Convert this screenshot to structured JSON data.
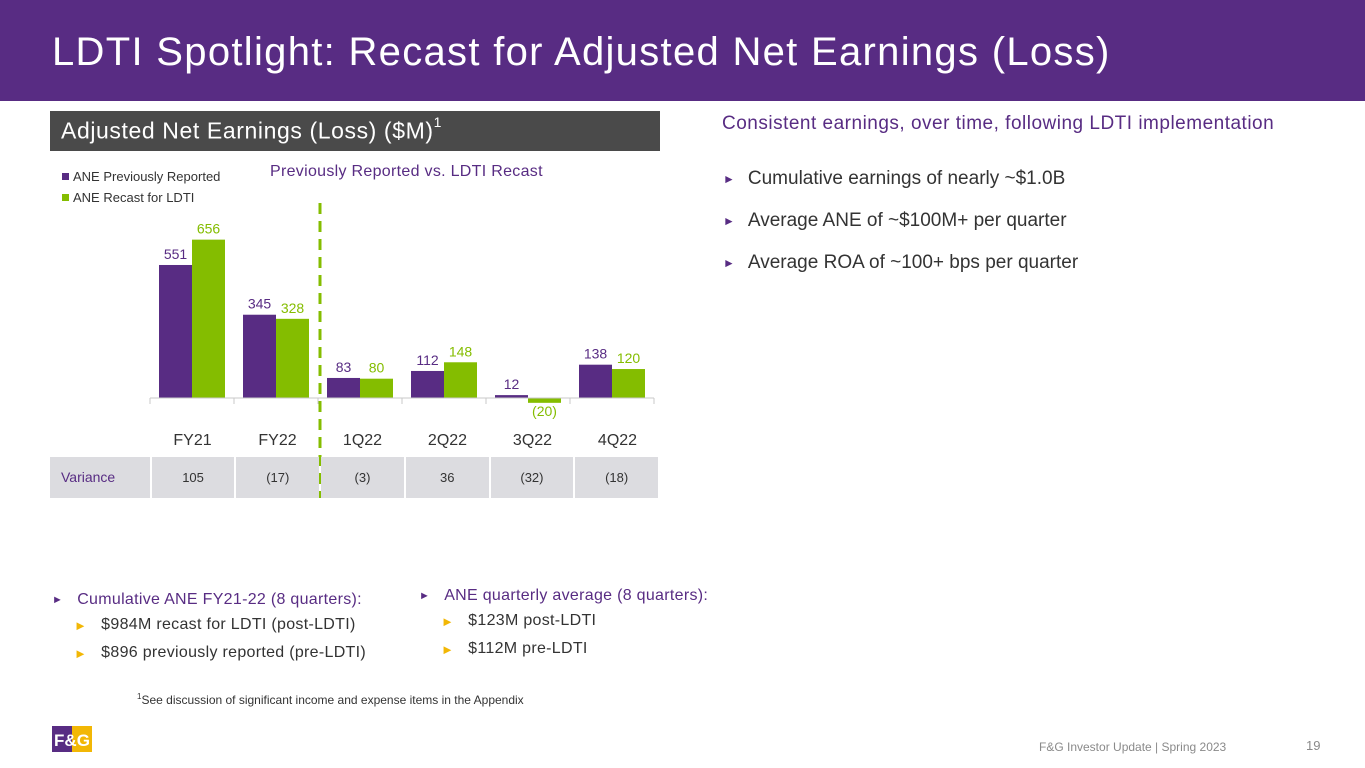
{
  "title": "LDTI Spotlight: Recast for Adjusted Net Earnings (Loss)",
  "chart_header": {
    "text": "Adjusted Net Earnings (Loss) ($M)",
    "footnote_mark": "1"
  },
  "chart_data": {
    "type": "bar",
    "title": "Adjusted Net Earnings (Loss) ($M)",
    "subtitle": "Previously Reported vs. LDTI Recast",
    "categories": [
      "FY21",
      "FY22",
      "1Q22",
      "2Q22",
      "3Q22",
      "4Q22"
    ],
    "series": [
      {
        "name": "ANE Previously Reported",
        "values": [
          551,
          345,
          83,
          112,
          12,
          138
        ],
        "labels": [
          "551",
          "345",
          "83",
          "112",
          "12",
          "138"
        ],
        "color": "#582c83"
      },
      {
        "name": "ANE Recast for LDTI",
        "values": [
          656,
          328,
          80,
          148,
          -20,
          120
        ],
        "labels": [
          "656",
          "328",
          "80",
          "148",
          "(20)",
          "120"
        ],
        "color": "#84bd00"
      }
    ],
    "variance": {
      "label": "Variance",
      "values": [
        "105",
        "(17)",
        "(3)",
        "36",
        "(32)",
        "(18)"
      ]
    },
    "divider_after_category": "FY22",
    "legend_position": "top-left"
  },
  "right_panel": {
    "heading": "Consistent earnings, over time, following LDTI implementation",
    "bullets": [
      "Cumulative earnings of nearly ~$1.0B",
      "Average ANE of ~$100M+ per quarter",
      "Average ROA of ~100+ bps per quarter"
    ]
  },
  "bottom_left": {
    "heading": "Cumulative ANE FY21-22 (8 quarters):",
    "items": [
      "$984M recast for LDTI (post-LDTI)",
      "$896 previously reported (pre-LDTI)"
    ]
  },
  "bottom_right": {
    "heading": "ANE quarterly average (8 quarters):",
    "items": [
      "$123M post-LDTI",
      "$112M pre-LDTI"
    ]
  },
  "footnote": {
    "mark": "1",
    "text": "See discussion of significant income and expense items in the Appendix"
  },
  "logo_text": "F&G",
  "footer": {
    "text": "F&G Investor Update | Spring 2023",
    "page": "19"
  },
  "arrow_glyph": "►",
  "colors": {
    "brand_purple": "#582c83",
    "brand_green": "#84bd00",
    "bullet_gold": "#f2b705"
  }
}
